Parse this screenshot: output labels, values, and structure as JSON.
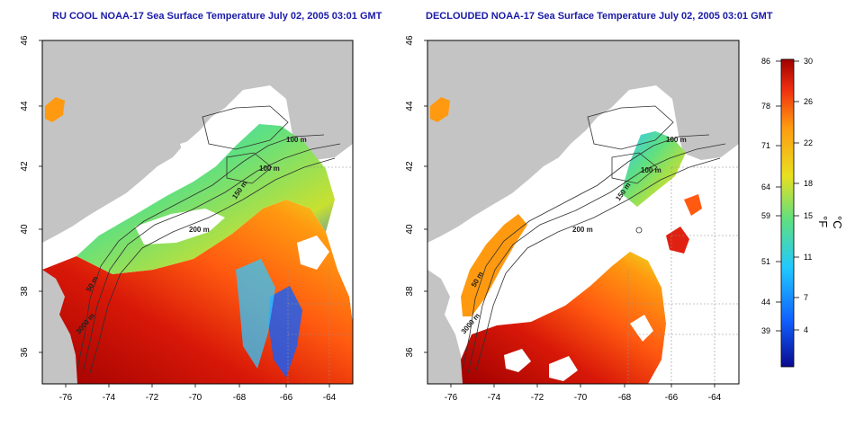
{
  "panels": [
    {
      "title": "RU COOL NOAA-17 Sea Surface Temperature July 02, 2005 03:01 GMT",
      "contour_labels": [
        "100 m",
        "100 m",
        "150 m",
        "200 m",
        "50 m",
        "3000 m"
      ],
      "coverage": "partial"
    },
    {
      "title": "DECLOUDED NOAA-17 Sea Surface Temperature July 02, 2005 03:01 GMT",
      "contour_labels": [
        "100 m",
        "100 m",
        "150 m",
        "200 m",
        "50 m",
        "3000 m"
      ],
      "coverage": "declouded"
    }
  ],
  "axes": {
    "x_ticks": [
      "-76",
      "-74",
      "-72",
      "-70",
      "-68",
      "-66",
      "-64"
    ],
    "y_ticks": [
      "46",
      "44",
      "42",
      "40",
      "38",
      "36"
    ]
  },
  "colorbar": {
    "fahrenheit_label": "°F",
    "celsius_label": "°C",
    "fahrenheit_ticks": [
      "86",
      "78",
      "71",
      "64",
      "59",
      "51",
      "44",
      "39"
    ],
    "celsius_ticks": [
      "30",
      "26",
      "22",
      "18",
      "15",
      "11",
      "7",
      "4"
    ]
  },
  "colors": {
    "land": "#c4c4c4",
    "no_data": "#ffffff",
    "title": "#1a1aa8",
    "scale": [
      "#0a0a90",
      "#1060ff",
      "#20c8ff",
      "#60e080",
      "#e8e020",
      "#ff9a10",
      "#f03010",
      "#a00000"
    ]
  }
}
